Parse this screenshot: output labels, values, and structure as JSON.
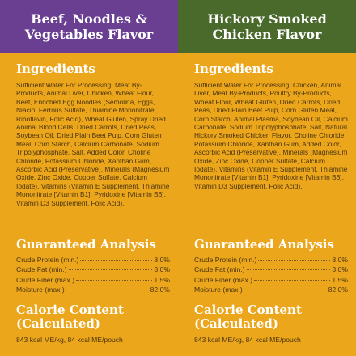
{
  "colors": {
    "left_header": "#6a3f92",
    "right_header": "#4a6a2c",
    "background": "#eba61c"
  },
  "left": {
    "header": "Beef, Noodles & Vegetables Flavor",
    "ingredients_title": "Ingredients",
    "ingredients": "Sufficient Water For Processing, Meat By-Products, Animal Liver, Chicken, Wheat Flour, Beef, Enriched Egg Noodles (Semolina, Eggs, Niacin, Ferrous Sulfate, Thiamine Mononitrate, Riboflavin, Folic Acid), Wheat Gluten, Spray Dried Animal Blood Cells, Dried Carrots, Dried Peas, Soybean Oil, Dried Plain Beet Pulp, Corn Gluten Meal, Corn Starch, Calcium Carbonate, Sodium Tripolyphosphate, Salt, Added Color, Choline Chloride, Potassium Chloride, Xanthan Gum, Ascorbic Acid (Preservative), Minerals (Magnesium Oxide, Zinc Oxide, Copper Sulfate, Calcium Iodate), Vitamins (Vitamin E Supplement, Thiamine Mononitrate [Vitamin B1], Pyridoxine [Vitamin B6], Vitamin D3 Supplement, Folic Acid).",
    "ga_title": "Guaranteed Analysis",
    "ga": [
      {
        "label": "Crude Protein (min.)",
        "value": "8.0%"
      },
      {
        "label": "Crude Fat (min.)",
        "value": "3.0%"
      },
      {
        "label": "Crude Fiber (max.)",
        "value": "1.5%"
      },
      {
        "label": "Moisture (max.)",
        "value": "82.0%"
      }
    ],
    "cal_title": "Calorie Content (Calculated)",
    "cal_text": "843 kcal ME/kg, 84 kcal ME/pouch"
  },
  "right": {
    "header": "Hickory Smoked Chicken Flavor",
    "ingredients_title": "Ingredients",
    "ingredients": "Sufficient Water For Processing, Chicken, Animal Liver, Meat By-Products, Poultry By-Products, Wheat Flour, Wheat Gluten, Dried Carrots, Dried Peas, Dried Plain Beet Pulp, Corn Gluten Meal, Corn Starch, Animal Plasma, Soybean Oil, Calcium Carbonate, Sodium Tripolyphosphate, Salt, Natural Hickory Smoked Chicken Flavor, Choline Chloride, Potassium Chloride, Xanthan Gum, Added Color, Ascorbic Acid (Preservative), Minerals (Magnesium Oxide, Zinc Oxide, Copper Sulfate, Calcium Iodate), Vitamins (Vitamin E Supplement, Thiamine Mononitrate [Vitamin B1], Pyridoxine [Vitamin B6], Vitamin D3 Supplement, Folic Acid).",
    "ga_title": "Guaranteed Analysis",
    "ga": [
      {
        "label": "Crude Protein (min.)",
        "value": "8.0%"
      },
      {
        "label": "Crude Fat (min.)",
        "value": "3.0%"
      },
      {
        "label": "Crude Fiber (max.)",
        "value": "1.5%"
      },
      {
        "label": "Moisture (max.)",
        "value": "82.0%"
      }
    ],
    "cal_title": "Calorie Content (Calculated)",
    "cal_text": "843 kcal ME/kg, 84 kcal ME/pouch"
  }
}
